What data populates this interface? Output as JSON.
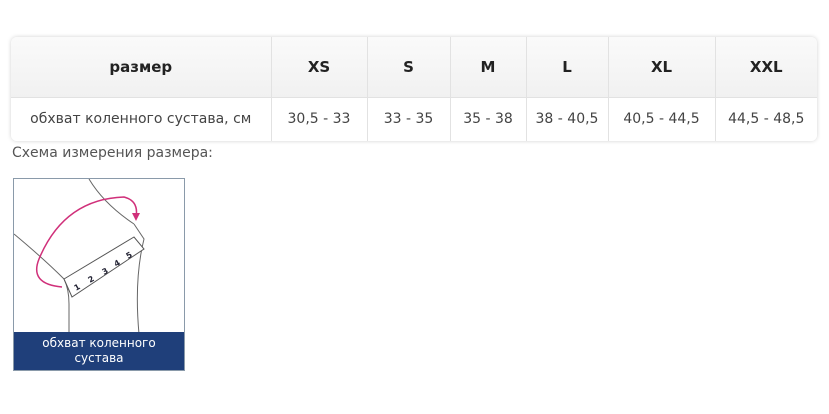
{
  "table": {
    "header": [
      "размер",
      "XS",
      "S",
      "M",
      "L",
      "XL",
      "XXL"
    ],
    "row": [
      "обхват коленного сустава, см",
      "30,5 - 33",
      "33 - 35",
      "35 - 38",
      "38 - 40,5",
      "40,5 - 44,5",
      "44,5 - 48,5"
    ]
  },
  "caption": "Схема измерения размера:",
  "diagram": {
    "label_line1": "обхват коленного",
    "label_line2": "сустава",
    "scale_numbers": [
      "1",
      "2",
      "3",
      "4",
      "5"
    ],
    "band_color": "#1f3f7a",
    "arrow_color": "#d0307a"
  }
}
